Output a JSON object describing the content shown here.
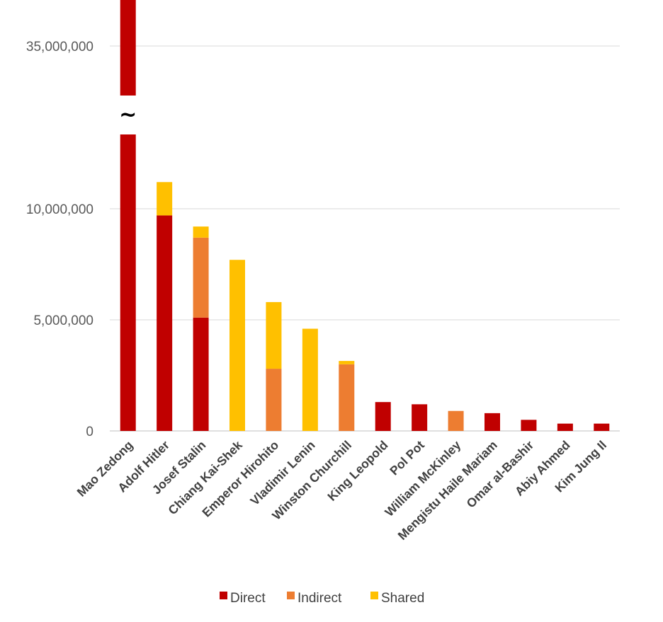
{
  "chart_data": {
    "type": "bar",
    "stacked": true,
    "categories": [
      "Mao Zedong",
      "Adolf Hitler",
      "Josef Stalin",
      "Chiang Kai-Shek",
      "Emperor Hirohito",
      "Vladimir Lenin",
      "Winston Churchill",
      "King Leopold",
      "Pol Pot",
      "William McKinley",
      "Mengistu Haile Mariam",
      "Omar al-Bashir",
      "Abiy Ahmed",
      "Kim Jung Il"
    ],
    "series": [
      {
        "name": "Direct",
        "color": "#C00000",
        "values": [
          40000000,
          9700000,
          5100000,
          0,
          0,
          0,
          0,
          1300000,
          1200000,
          0,
          800000,
          500000,
          330000,
          330000
        ]
      },
      {
        "name": "Indirect",
        "color": "#ED7D31",
        "values": [
          0,
          0,
          3600000,
          0,
          2800000,
          0,
          3000000,
          0,
          0,
          900000,
          0,
          0,
          0,
          0
        ]
      },
      {
        "name": "Shared",
        "color": "#FFC000",
        "values": [
          0,
          1500000,
          500000,
          7700000,
          3000000,
          4600000,
          150000,
          0,
          0,
          0,
          0,
          0,
          0,
          0
        ]
      }
    ],
    "y_ticks": [
      "0",
      "5,000,000",
      "10,000,000",
      "35,000,000"
    ],
    "y_tick_values": [
      0,
      5000000,
      10000000,
      35000000
    ],
    "axis_break": {
      "symbol": "~",
      "from": 13500000,
      "to": 33000000
    },
    "ylim": [
      0,
      36000000
    ],
    "grid": true,
    "legend_position": "bottom",
    "title": "",
    "xlabel": "",
    "ylabel": ""
  }
}
